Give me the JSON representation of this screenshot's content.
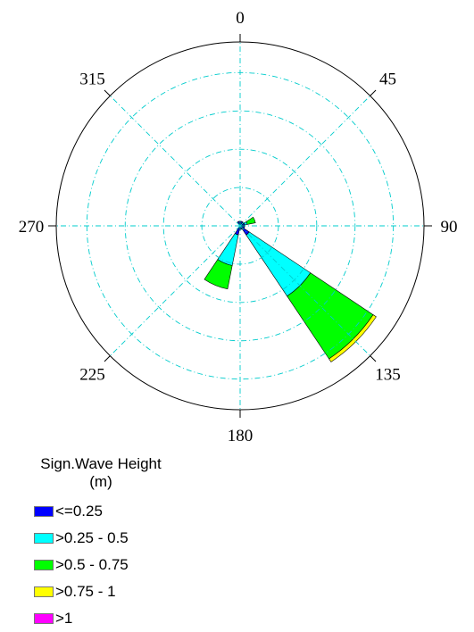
{
  "chart_data": {
    "type": "windrose",
    "title": "",
    "direction_labels": [
      "0",
      "45",
      "90",
      "135",
      "180",
      "225",
      "270",
      "315"
    ],
    "direction_angles": [
      0,
      45,
      90,
      135,
      180,
      225,
      270,
      315
    ],
    "grid": true,
    "grid_style": "dash-dot",
    "grid_color": "#00cccc",
    "rings": 4,
    "legend": {
      "title_line1": "Sign.Wave Height",
      "title_line2": "(m)",
      "placement": "bottom-left",
      "items": [
        {
          "label": "<=0.25",
          "color": "#0000ff"
        },
        {
          "label": ">0.25 - 0.5",
          "color": "#00ffff"
        },
        {
          "label": ">0.5 - 0.75",
          "color": "#00ff00"
        },
        {
          "label": ">0.75 - 1",
          "color": "#ffff00"
        },
        {
          "label": ">1",
          "color": "#ff00ff"
        }
      ]
    },
    "sectors_note": "cumulative radial extent as fraction of outer ring",
    "sectors": [
      {
        "direction": 67.5,
        "bounds": [
          0.025,
          0.04,
          0.085,
          0.085,
          0.085
        ]
      },
      {
        "direction": 90,
        "bounds": [
          0.025,
          0.025,
          0.025,
          0.025,
          0.025
        ]
      },
      {
        "direction": 112.5,
        "bounds": [
          0.025,
          0.025,
          0.025,
          0.025,
          0.025
        ]
      },
      {
        "direction": 135,
        "bounds": [
          0.06,
          0.46,
          0.87,
          0.89,
          0.89
        ]
      },
      {
        "direction": 157.5,
        "bounds": [
          0.02,
          0.02,
          0.02,
          0.02,
          0.02
        ]
      },
      {
        "direction": 180,
        "bounds": [
          0.02,
          0.02,
          0.02,
          0.02,
          0.02
        ]
      },
      {
        "direction": 202.5,
        "bounds": [
          0.05,
          0.22,
          0.35,
          0.35,
          0.35
        ]
      },
      {
        "direction": 337.5,
        "bounds": [
          0.025,
          0.025,
          0.025,
          0.025,
          0.025
        ]
      },
      {
        "direction": 0,
        "bounds": [
          0.025,
          0.025,
          0.025,
          0.025,
          0.025
        ]
      },
      {
        "direction": 22.5,
        "bounds": [
          0.025,
          0.025,
          0.025,
          0.025,
          0.025
        ]
      },
      {
        "direction": 45,
        "bounds": [
          0.025,
          0.025,
          0.025,
          0.025,
          0.025
        ]
      }
    ]
  }
}
